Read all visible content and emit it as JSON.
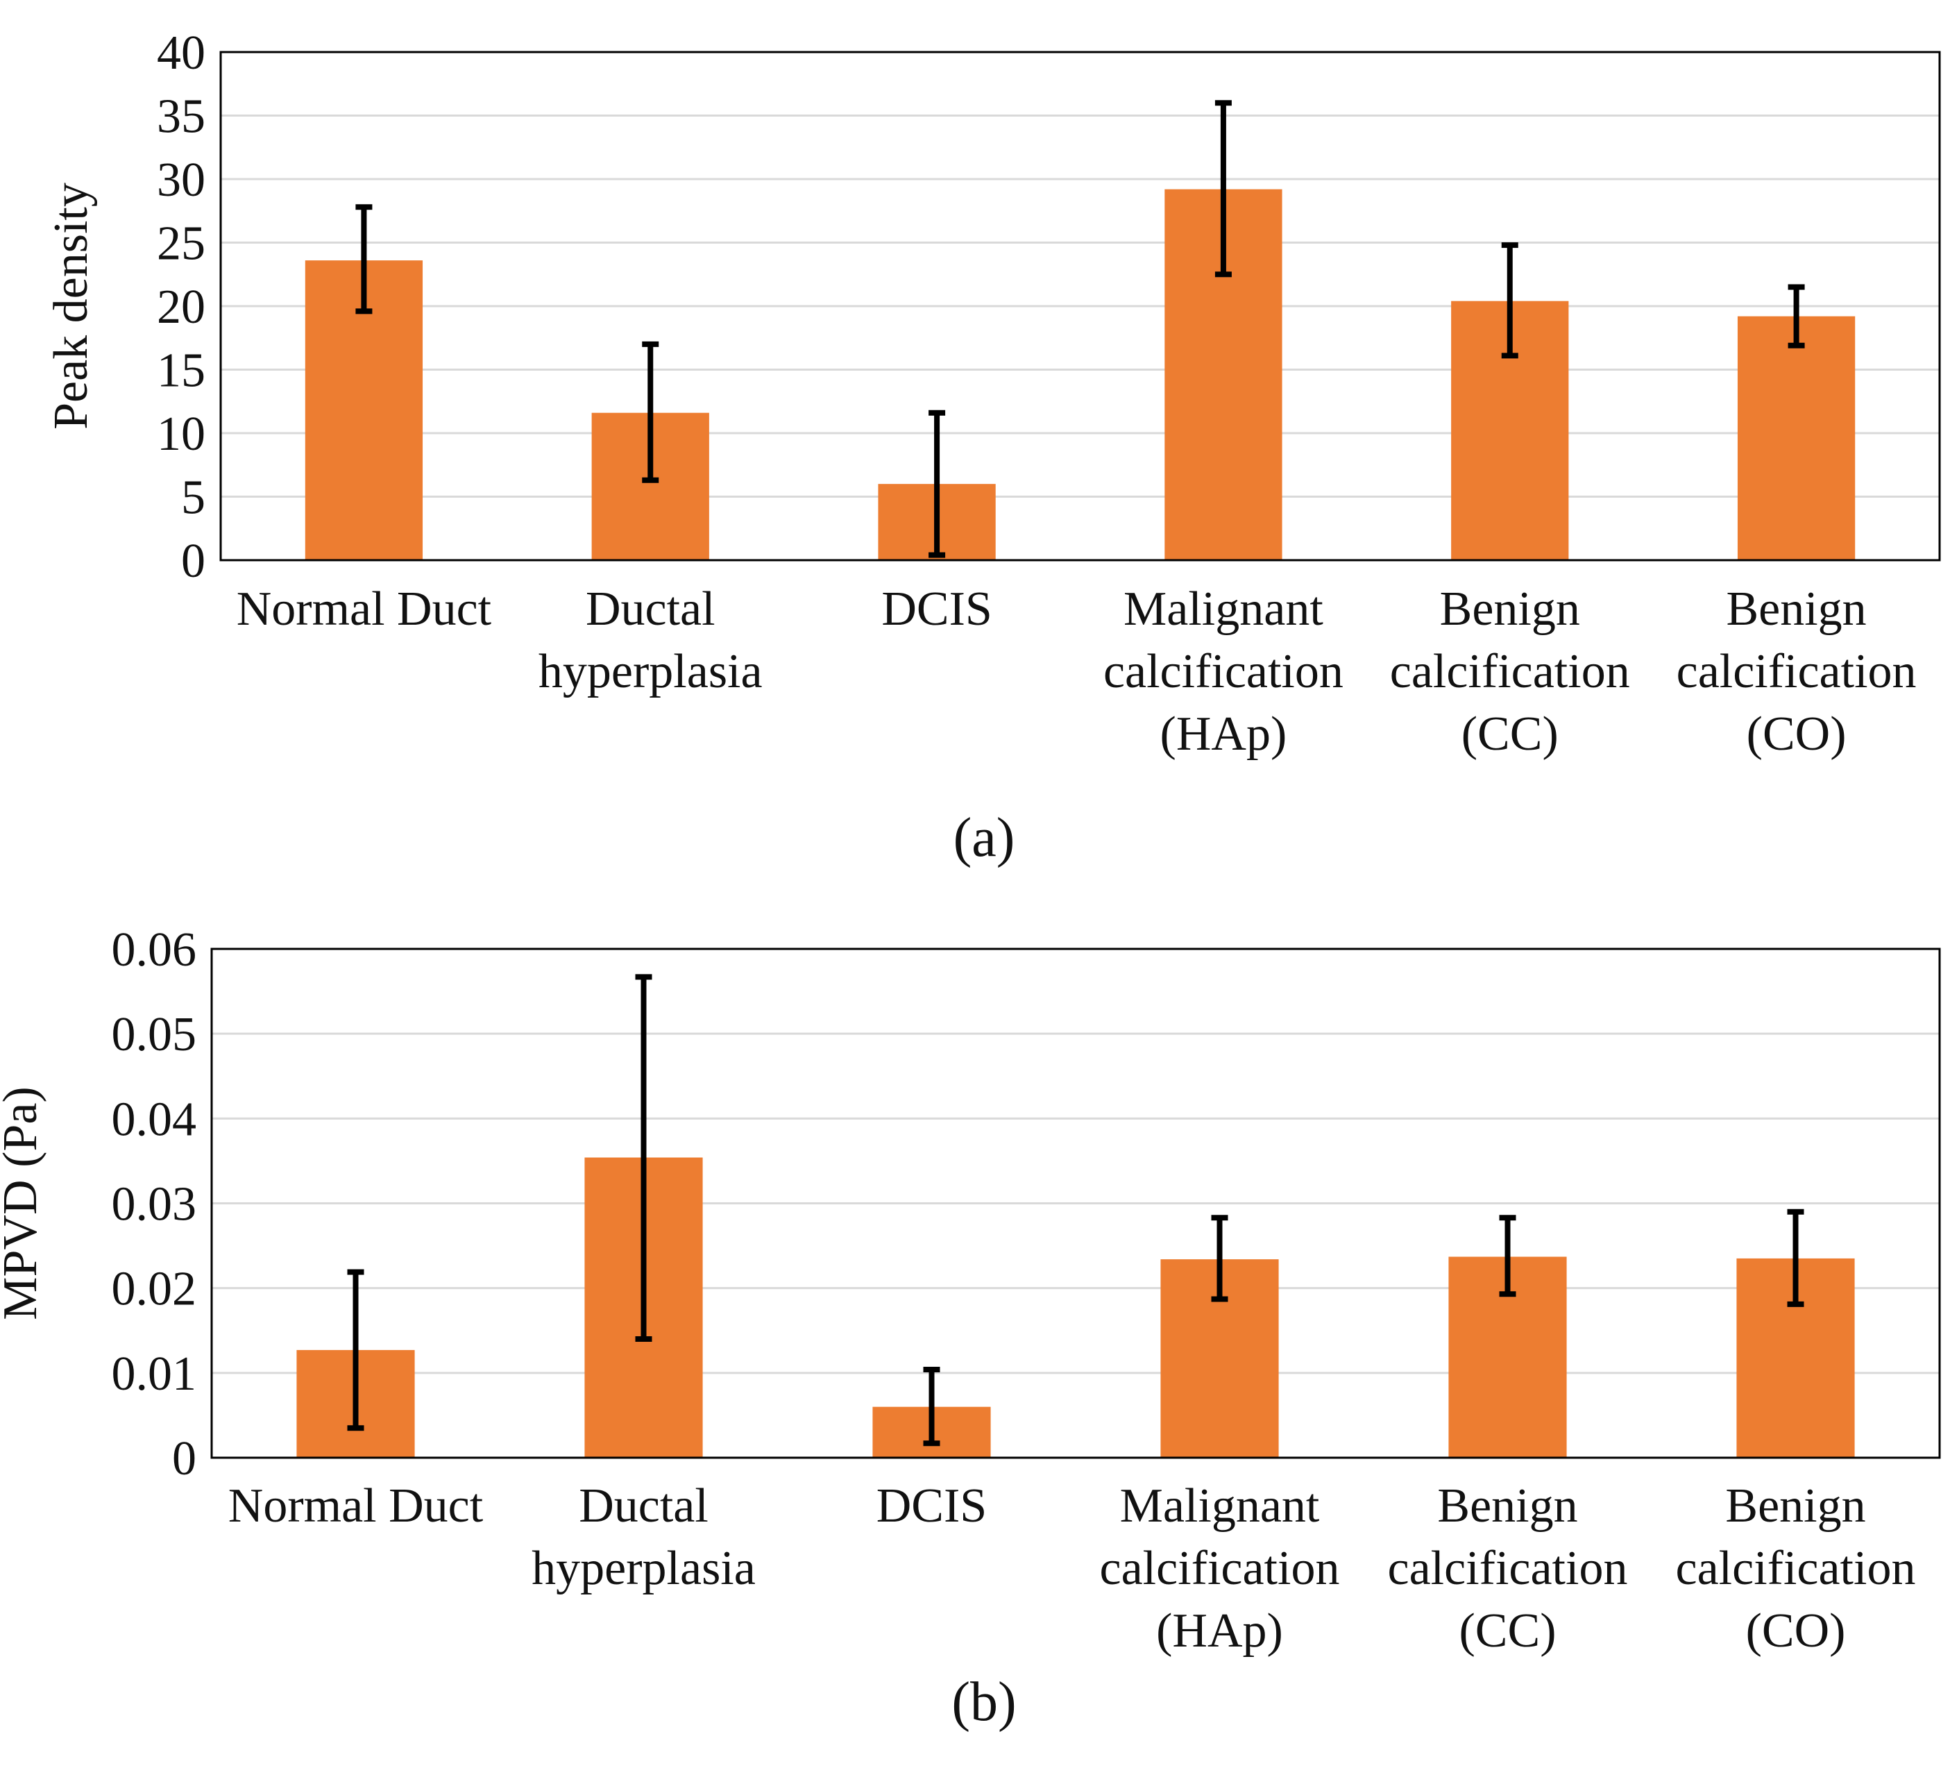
{
  "colors": {
    "bar": "#ED7D31",
    "error_bar": "#000000",
    "grid": "#D9D9D9",
    "frame": "#000000"
  },
  "chart_data": [
    {
      "type": "bar",
      "panel_label": "(a)",
      "title": "",
      "xlabel": "",
      "ylabel": "Peak density",
      "ylim": [
        0,
        40
      ],
      "yticks": [
        0,
        5,
        10,
        15,
        20,
        25,
        30,
        35,
        40
      ],
      "ytick_labels": [
        "0",
        "5",
        "10",
        "15",
        "20",
        "25",
        "30",
        "35",
        "40"
      ],
      "grid": true,
      "categories": [
        [
          "Normal Duct"
        ],
        [
          "Ductal",
          "hyperplasia"
        ],
        [
          "DCIS"
        ],
        [
          "Malignant",
          "calcification",
          "(HAp)"
        ],
        [
          "Benign",
          "calcification",
          "(CC)"
        ],
        [
          "Benign",
          "calcification",
          "(CO)"
        ]
      ],
      "values": [
        23.6,
        11.6,
        6.0,
        29.2,
        20.4,
        19.2
      ],
      "error_low": [
        19.6,
        6.3,
        0.4,
        22.5,
        16.1,
        16.9
      ],
      "error_high": [
        27.8,
        17.0,
        11.6,
        36.0,
        24.8,
        21.5
      ]
    },
    {
      "type": "bar",
      "panel_label": "(b)",
      "title": "",
      "xlabel": "",
      "ylabel": "MPVD (Pa)",
      "ylim": [
        0,
        0.06
      ],
      "yticks": [
        0,
        0.01,
        0.02,
        0.03,
        0.04,
        0.05,
        0.06
      ],
      "ytick_labels": [
        "0",
        "0.01",
        "0.02",
        "0.03",
        "0.04",
        "0.05",
        "0.06"
      ],
      "grid": true,
      "categories": [
        [
          "Normal Duct"
        ],
        [
          "Ductal",
          "hyperplasia"
        ],
        [
          "DCIS"
        ],
        [
          "Malignant",
          "calcification",
          "(HAp)"
        ],
        [
          "Benign",
          "calcification",
          "(CC)"
        ],
        [
          "Benign",
          "calcification",
          "(CO)"
        ]
      ],
      "values": [
        0.0127,
        0.0354,
        0.006,
        0.0234,
        0.0237,
        0.0235
      ],
      "error_low": [
        0.0035,
        0.014,
        0.0017,
        0.0187,
        0.0193,
        0.0181
      ],
      "error_high": [
        0.0219,
        0.0567,
        0.0104,
        0.0283,
        0.0283,
        0.029
      ]
    }
  ]
}
